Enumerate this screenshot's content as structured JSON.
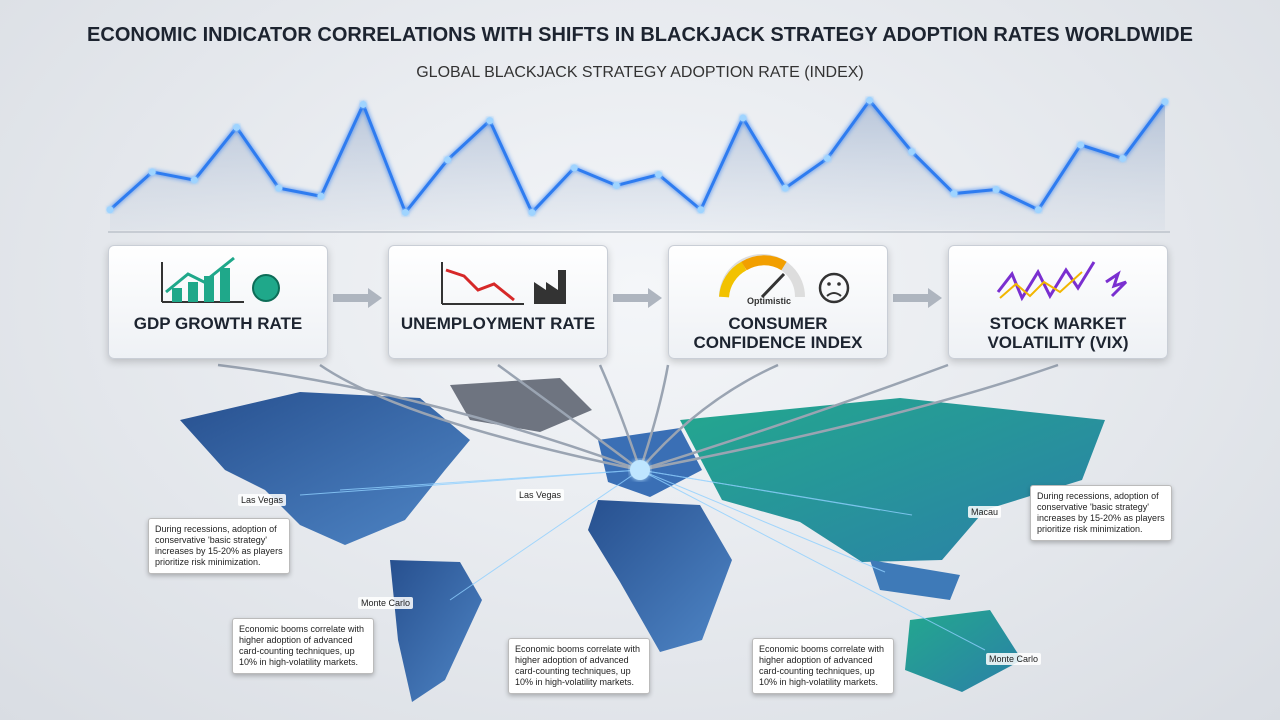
{
  "title": "ECONOMIC INDICATOR CORRELATIONS WITH SHIFTS IN BLACKJACK STRATEGY ADOPTION RATES WORLDWIDE",
  "chart_data": {
    "type": "line",
    "title": "GLOBAL BLACKJACK STRATEGY ADOPTION RATE (INDEX)",
    "values": [
      15,
      43,
      37,
      76,
      31,
      25,
      93,
      13,
      52,
      81,
      13,
      46,
      33,
      41,
      15,
      83,
      31,
      53,
      96,
      58,
      27,
      30,
      15,
      63,
      53,
      95
    ],
    "color": "#2f7cf0",
    "ylim": [
      0,
      100
    ]
  },
  "indicators": [
    {
      "label": "GDP GROWTH RATE"
    },
    {
      "label": "UNEMPLOYMENT RATE"
    },
    {
      "label": "CONSUMER CONFIDENCE INDEX",
      "gauge_label": "Optimistic"
    },
    {
      "label": "STOCK MARKET VOLATILITY (VIX)"
    }
  ],
  "pins": [
    {
      "label": "Las Vegas"
    },
    {
      "label": "Las Vegas"
    },
    {
      "label": "Monte Carlo"
    },
    {
      "label": "Macau"
    },
    {
      "label": "Monte Carlo"
    }
  ],
  "notes": [
    {
      "text": "During recessions, adoption of conservative 'basic strategy' increases by 15-20% as players prioritize risk minimization."
    },
    {
      "text": "During recessions, adoption of conservative 'basic strategy' increases by 15-20% as players prioritize risk minimization."
    },
    {
      "text": "Economic booms correlate with higher adoption of advanced card-counting techniques, up 10% in high-volatility markets."
    },
    {
      "text": "Economic booms correlate with higher adoption of advanced card-counting techniques, up 10% in high-volatility markets."
    },
    {
      "text": "Economic booms correlate with higher adoption of advanced card-counting techniques, up 10% in high-volatility markets."
    }
  ]
}
